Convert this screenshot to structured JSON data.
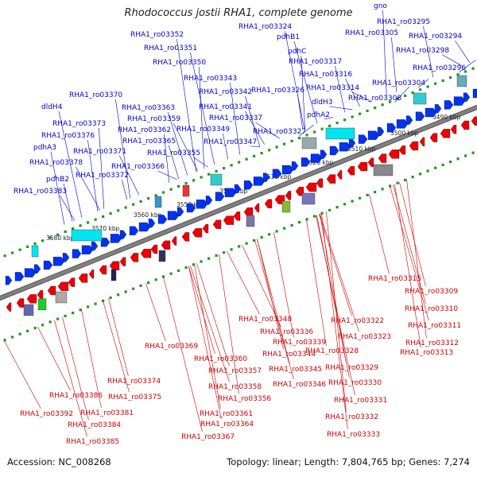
{
  "title": "Rhodococcus jostii RHA1, complete genome",
  "footer": {
    "accession": "Accession: NC_008268",
    "topology": "Topology: linear; Length: 7,804,765 bp; Genes: 7,274"
  },
  "colors": {
    "forward_label": "#0000cc",
    "reverse_label": "#cc0000",
    "backbone": "#808080",
    "forward_feature": "#0033ee",
    "reverse_feature": "#ee0000",
    "cds_hit": "#00e5f0",
    "tick_dot": "#1e9a1e"
  },
  "tick_labels": [
    "3490 kbp",
    "3500 kbp",
    "3510 kbp",
    "3520 kbp",
    "3530 kbp",
    "3540 kbp",
    "3550 kbp",
    "3560 kbp",
    "3570 kbp",
    "3580 kbp"
  ],
  "forward_genes": [
    "gno",
    "RHA1_ro03295",
    "RHA1_ro03294",
    "RHA1_ro03298",
    "RHA1_ro03296",
    "RHA1_ro03305",
    "RHA1_ro03304",
    "RHA1_ro03308",
    "RHA1_ro03324",
    "pdhB1",
    "pdhC",
    "RHA1_ro03317",
    "RHA1_ro03316",
    "RHA1_ro03314",
    "dldH3",
    "RHA1_ro03326",
    "pdhA2",
    "RHA1_ro03327",
    "RHA1_ro03352",
    "RHA1_ro03351",
    "RHA1_ro03350",
    "RHA1_ro03343",
    "RHA1_ro03342",
    "RHA1_ro03341",
    "RHA1_ro03337",
    "RHA1_ro03349",
    "RHA1_ro03347",
    "RHA1_ro03370",
    "RHA1_ro03363",
    "RHA1_ro03359",
    "RHA1_ro03362",
    "RHA1_ro03365",
    "RHA1_ro03355",
    "RHA1_ro03366",
    "dldH4",
    "RHA1_ro03373",
    "RHA1_ro03376",
    "pdhA3",
    "RHA1_ro03371",
    "RHA1_ro03378",
    "RHA1_ro03372",
    "pdhB2",
    "RHA1_ro03383"
  ],
  "reverse_genes": [
    "RHA1_ro03315",
    "RHA1_ro03309",
    "RHA1_ro03310",
    "RHA1_ro03311",
    "RHA1_ro03312",
    "RHA1_ro03313",
    "RHA1_ro03322",
    "RHA1_ro03323",
    "RHA1_ro03328",
    "RHA1_ro03329",
    "RHA1_ro03330",
    "RHA1_ro03331",
    "RHA1_ro03332",
    "RHA1_ro03333",
    "RHA1_ro03348",
    "RHA1_ro03336",
    "RHA1_ro03339",
    "RHA1_ro03344",
    "RHA1_ro03345",
    "RHA1_ro03346",
    "RHA1_ro03369",
    "RHA1_ro03360",
    "RHA1_ro03357",
    "RHA1_ro03358",
    "RHA1_ro03356",
    "RHA1_ro03361",
    "RHA1_ro03364",
    "RHA1_ro03367",
    "RHA1_ro03374",
    "RHA1_ro03375",
    "RHA1_ro03386",
    "RHA1_ro03392",
    "RHA1_ro03381",
    "RHA1_ro03384",
    "RHA1_ro03385"
  ]
}
